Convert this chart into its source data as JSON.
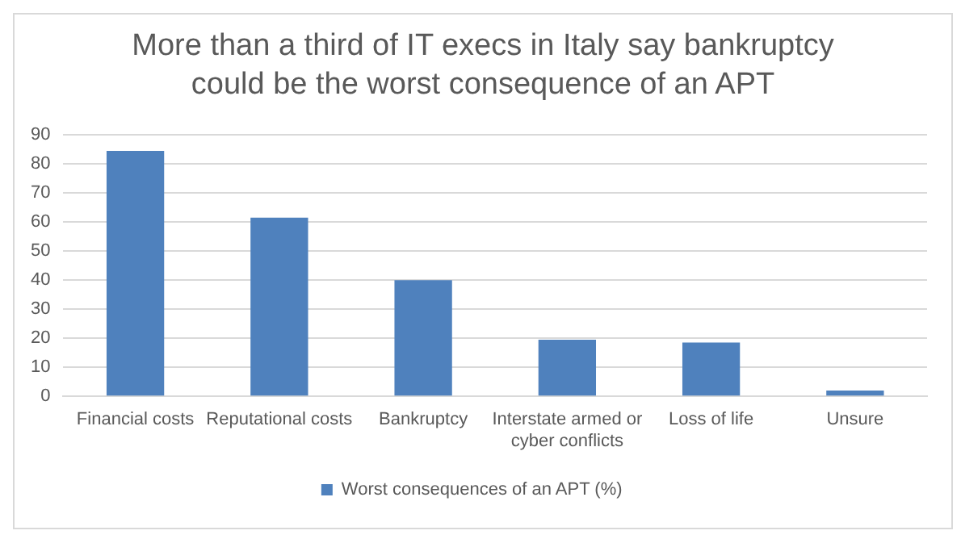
{
  "chart_data": {
    "type": "bar",
    "title": "More than a third of IT execs in Italy say bankruptcy could be the worst consequence of an APT",
    "categories": [
      "Financial costs",
      "Reputational costs",
      "Bankruptcy",
      "Interstate armed or cyber conflicts",
      "Loss of life",
      "Unsure"
    ],
    "series": [
      {
        "name": "Worst consequences of an APT (%)",
        "color": "#4f81bd",
        "values": [
          84.5,
          61.5,
          40,
          19.5,
          18.5,
          2
        ]
      }
    ],
    "ylim": [
      0,
      90
    ],
    "yticks": [
      0,
      10,
      20,
      30,
      40,
      50,
      60,
      70,
      80,
      90
    ],
    "grid": "y",
    "legend": "bottom"
  }
}
